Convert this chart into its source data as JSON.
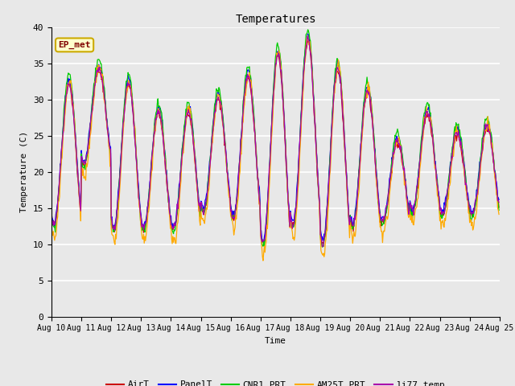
{
  "title": "Temperatures",
  "xlabel": "Time",
  "ylabel": "Temperature (C)",
  "ylim": [
    0,
    40
  ],
  "yticks": [
    0,
    5,
    10,
    15,
    20,
    25,
    30,
    35,
    40
  ],
  "colors": {
    "AirT": "#cc0000",
    "PanelT": "#0000ff",
    "CNR1_PRT": "#00cc00",
    "AM25T_PRT": "#ffaa00",
    "li77_temp": "#aa00aa"
  },
  "legend_label": "EP_met",
  "bg_color": "#e8e8e8",
  "fig_bg_color": "#e8e8e8",
  "n_days": 15,
  "start_day": 10,
  "peaks": [
    32,
    34,
    32,
    28,
    28,
    30,
    33,
    36,
    38,
    34,
    31,
    24,
    28,
    25,
    26
  ],
  "troughs": [
    12.5,
    21,
    12,
    12,
    12,
    14.5,
    13.5,
    10,
    12.5,
    10,
    12.5,
    13,
    14.5,
    14,
    14
  ]
}
